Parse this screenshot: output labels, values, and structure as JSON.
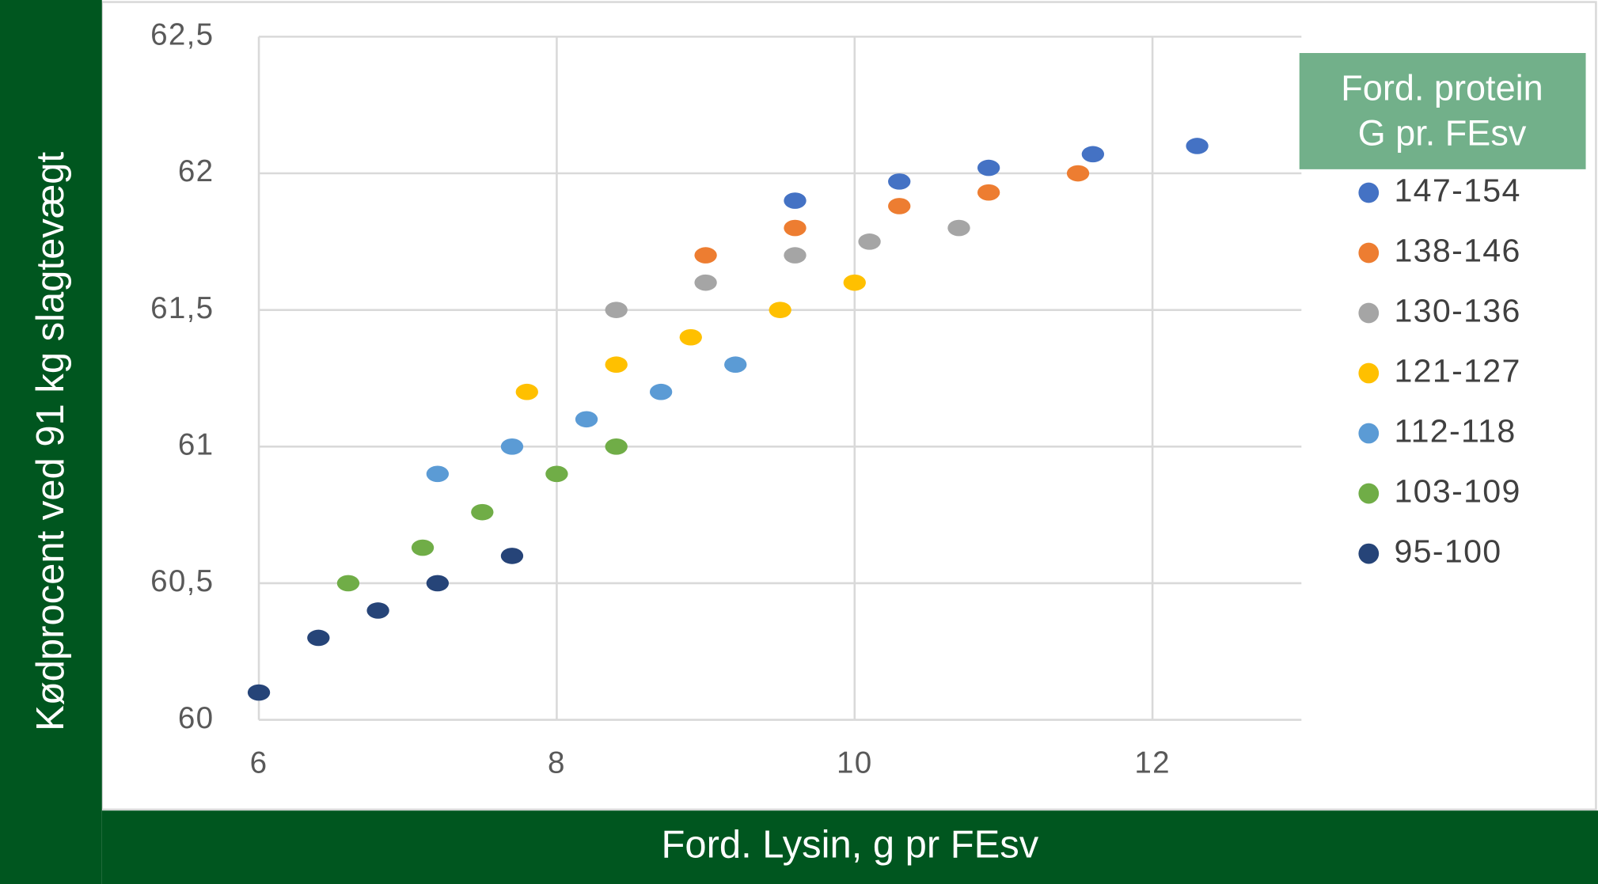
{
  "chart_data": {
    "type": "scatter",
    "x_label": "Ford. Lysin,  g pr FEsv",
    "y_label": "Kødprocent ved 91 kg slagtevægt",
    "legend_title": [
      "Ford. protein",
      "G pr. FEsv"
    ],
    "xlim": [
      6,
      13
    ],
    "xticks": [
      6,
      8,
      10,
      12
    ],
    "ylim": [
      60,
      62.5
    ],
    "yticks": [
      60,
      {
        "value": 60.5,
        "label": "60,5"
      },
      61,
      {
        "value": 61.5,
        "label": "61,5"
      },
      62,
      {
        "value": 62.5,
        "label": "62,5"
      }
    ],
    "grid": true,
    "series": [
      {
        "name": "147-154",
        "color": "#4472c4",
        "x": [
          9.6,
          10.3,
          10.9,
          11.6,
          12.3
        ],
        "values": [
          61.9,
          61.97,
          62.02,
          62.07,
          62.1
        ]
      },
      {
        "name": "138-146",
        "color": "#ed7d31",
        "x": [
          9.0,
          9.6,
          10.3,
          10.9,
          11.5
        ],
        "values": [
          61.7,
          61.8,
          61.88,
          61.93,
          62.0
        ]
      },
      {
        "name": "130-136",
        "color": "#a5a5a5",
        "x": [
          8.4,
          9.0,
          9.6,
          10.1,
          10.7
        ],
        "values": [
          61.5,
          61.6,
          61.7,
          61.75,
          61.8
        ]
      },
      {
        "name": "121-127",
        "color": "#ffc000",
        "x": [
          7.8,
          8.4,
          8.9,
          9.5,
          10.0
        ],
        "values": [
          61.2,
          61.3,
          61.4,
          61.5,
          61.6
        ]
      },
      {
        "name": "112-118",
        "color": "#5b9bd5",
        "x": [
          7.2,
          7.7,
          8.2,
          8.7,
          9.2
        ],
        "values": [
          60.9,
          61.0,
          61.1,
          61.2,
          61.3
        ]
      },
      {
        "name": "103-109",
        "color": "#70ad47",
        "x": [
          6.6,
          7.1,
          7.5,
          8.0,
          8.4
        ],
        "values": [
          60.5,
          60.63,
          60.76,
          60.9,
          61.0
        ]
      },
      {
        "name": "95-100",
        "color": "#264478",
        "x": [
          6.0,
          6.4,
          6.8,
          7.2,
          7.7
        ],
        "values": [
          60.1,
          60.3,
          60.4,
          60.5,
          60.6
        ]
      }
    ]
  }
}
